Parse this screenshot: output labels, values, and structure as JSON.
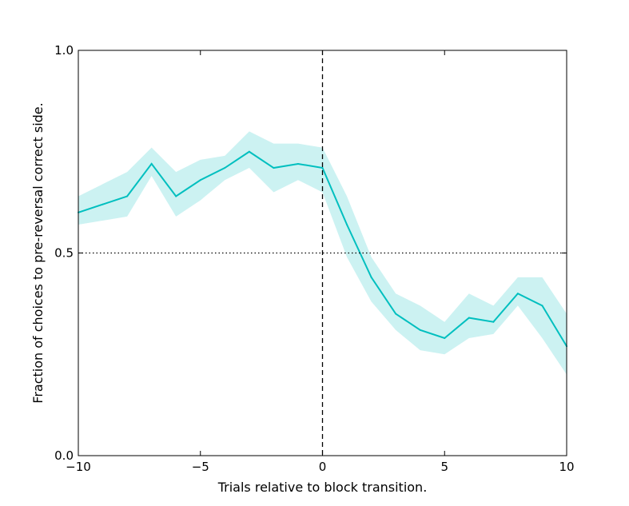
{
  "chart_data": {
    "type": "line",
    "xlabel": "Trials relative to block transition.",
    "ylabel": "Fraction of choices to pre-reversal correct side.",
    "xlim": [
      -10,
      10
    ],
    "ylim": [
      0.0,
      1.0
    ],
    "x_ticks": [
      -10,
      -5,
      0,
      5,
      10
    ],
    "x_tick_labels": [
      "−10",
      "−5",
      "0",
      "5",
      "10"
    ],
    "y_ticks": [
      0.0,
      0.5,
      1.0
    ],
    "y_tick_labels": [
      "0.0",
      "0.5",
      "1.0"
    ],
    "grid": false,
    "reference_lines": [
      {
        "orientation": "vertical",
        "value": 0,
        "style": "dashed",
        "color": "#000000"
      },
      {
        "orientation": "horizontal",
        "value": 0.5,
        "style": "dotted",
        "color": "#000000"
      }
    ],
    "series": [
      {
        "color": "#00bfbf",
        "band_color": "#00bfbf",
        "x": [
          -10,
          -9,
          -8,
          -7,
          -6,
          -5,
          -4,
          -3,
          -2,
          -1,
          0,
          1,
          2,
          3,
          4,
          5,
          6,
          7,
          8,
          9,
          10
        ],
        "y": [
          0.6,
          0.62,
          0.64,
          0.72,
          0.64,
          0.68,
          0.71,
          0.75,
          0.71,
          0.72,
          0.71,
          0.57,
          0.44,
          0.35,
          0.31,
          0.29,
          0.34,
          0.33,
          0.4,
          0.37,
          0.27
        ],
        "lower": [
          0.57,
          0.58,
          0.59,
          0.69,
          0.59,
          0.63,
          0.68,
          0.71,
          0.65,
          0.68,
          0.65,
          0.49,
          0.38,
          0.31,
          0.26,
          0.25,
          0.29,
          0.3,
          0.37,
          0.29,
          0.2
        ],
        "upper": [
          0.64,
          0.67,
          0.7,
          0.76,
          0.7,
          0.73,
          0.74,
          0.8,
          0.77,
          0.77,
          0.76,
          0.64,
          0.49,
          0.4,
          0.37,
          0.33,
          0.4,
          0.37,
          0.44,
          0.44,
          0.35
        ]
      }
    ]
  }
}
